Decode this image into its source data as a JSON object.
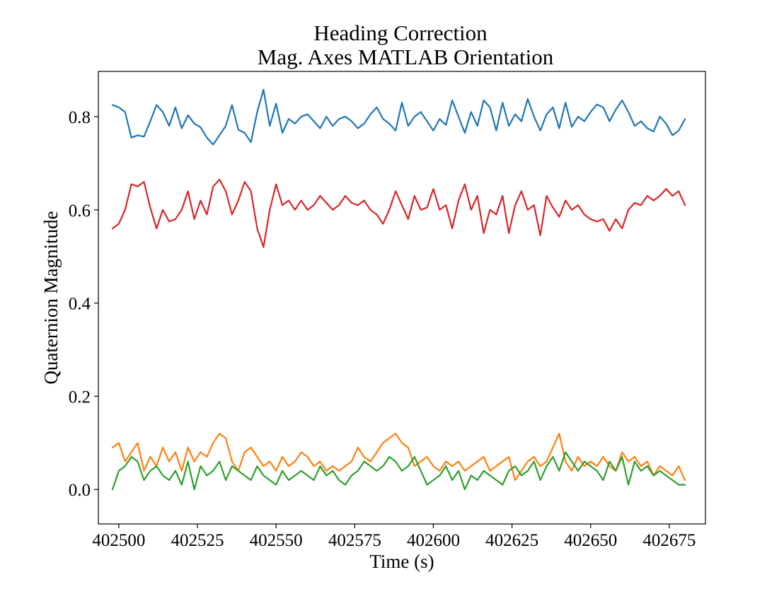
{
  "chart_data": {
    "type": "line",
    "title": [
      "Heading Correction",
      "Mag. Axes MATLAB Orientation"
    ],
    "xlabel": "Time (s)",
    "ylabel": "Quaternion Magnitude",
    "xlim": [
      402493.5,
      402686.5
    ],
    "ylim": [
      -0.074,
      0.897
    ],
    "xticks": [
      402500,
      402525,
      402550,
      402575,
      402600,
      402625,
      402650,
      402675
    ],
    "yticks": [
      0.0,
      0.2,
      0.4,
      0.6,
      0.8
    ],
    "ytick_labels": [
      "0.0",
      "0.2",
      "0.4",
      "0.6",
      "0.8"
    ],
    "grid": false,
    "series": [
      {
        "color": "#1f77b4",
        "x": [
          402498,
          402500,
          402502,
          402504,
          402506,
          402508,
          402510,
          402512,
          402514,
          402516,
          402518,
          402520,
          402522,
          402524,
          402526,
          402528,
          402530,
          402532,
          402534,
          402536,
          402538,
          402540,
          402542,
          402544,
          402546,
          402548,
          402550,
          402552,
          402554,
          402556,
          402558,
          402560,
          402562,
          402564,
          402566,
          402568,
          402570,
          402572,
          402574,
          402576,
          402578,
          402580,
          402582,
          402584,
          402586,
          402588,
          402590,
          402592,
          402594,
          402596,
          402598,
          402600,
          402602,
          402604,
          402606,
          402608,
          402610,
          402612,
          402614,
          402616,
          402618,
          402620,
          402622,
          402624,
          402626,
          402628,
          402630,
          402632,
          402634,
          402636,
          402638,
          402640,
          402642,
          402644,
          402646,
          402648,
          402650,
          402652,
          402654,
          402656,
          402658,
          402660,
          402662,
          402664,
          402666,
          402668,
          402670,
          402672,
          402674,
          402676,
          402678,
          402680
        ],
        "values": [
          0.825,
          0.82,
          0.81,
          0.755,
          0.76,
          0.757,
          0.79,
          0.825,
          0.81,
          0.78,
          0.82,
          0.775,
          0.803,
          0.785,
          0.777,
          0.755,
          0.74,
          0.76,
          0.78,
          0.825,
          0.772,
          0.765,
          0.745,
          0.81,
          0.858,
          0.78,
          0.828,
          0.765,
          0.795,
          0.785,
          0.8,
          0.805,
          0.79,
          0.775,
          0.8,
          0.78,
          0.795,
          0.8,
          0.79,
          0.775,
          0.785,
          0.805,
          0.82,
          0.795,
          0.785,
          0.77,
          0.83,
          0.78,
          0.8,
          0.81,
          0.79,
          0.77,
          0.795,
          0.782,
          0.835,
          0.8,
          0.765,
          0.81,
          0.78,
          0.835,
          0.82,
          0.77,
          0.83,
          0.78,
          0.805,
          0.79,
          0.838,
          0.8,
          0.77,
          0.805,
          0.82,
          0.775,
          0.83,
          0.778,
          0.8,
          0.79,
          0.81,
          0.826,
          0.82,
          0.79,
          0.815,
          0.835,
          0.81,
          0.78,
          0.79,
          0.775,
          0.768,
          0.8,
          0.785,
          0.76,
          0.77,
          0.795
        ]
      },
      {
        "color": "#d62728",
        "x": [
          402498,
          402500,
          402502,
          402504,
          402506,
          402508,
          402510,
          402512,
          402514,
          402516,
          402518,
          402520,
          402522,
          402524,
          402526,
          402528,
          402530,
          402532,
          402534,
          402536,
          402538,
          402540,
          402542,
          402544,
          402546,
          402548,
          402550,
          402552,
          402554,
          402556,
          402558,
          402560,
          402562,
          402564,
          402566,
          402568,
          402570,
          402572,
          402574,
          402576,
          402578,
          402580,
          402582,
          402584,
          402586,
          402588,
          402590,
          402592,
          402594,
          402596,
          402598,
          402600,
          402602,
          402604,
          402606,
          402608,
          402610,
          402612,
          402614,
          402616,
          402618,
          402620,
          402622,
          402624,
          402626,
          402628,
          402630,
          402632,
          402634,
          402636,
          402638,
          402640,
          402642,
          402644,
          402646,
          402648,
          402650,
          402652,
          402654,
          402656,
          402658,
          402660,
          402662,
          402664,
          402666,
          402668,
          402670,
          402672,
          402674,
          402676,
          402678,
          402680
        ],
        "values": [
          0.56,
          0.57,
          0.6,
          0.655,
          0.65,
          0.66,
          0.605,
          0.56,
          0.6,
          0.575,
          0.58,
          0.6,
          0.64,
          0.58,
          0.62,
          0.59,
          0.65,
          0.665,
          0.64,
          0.59,
          0.62,
          0.66,
          0.64,
          0.56,
          0.52,
          0.6,
          0.655,
          0.61,
          0.62,
          0.6,
          0.62,
          0.6,
          0.61,
          0.63,
          0.615,
          0.6,
          0.61,
          0.63,
          0.615,
          0.61,
          0.62,
          0.6,
          0.59,
          0.57,
          0.6,
          0.64,
          0.61,
          0.58,
          0.63,
          0.6,
          0.605,
          0.645,
          0.6,
          0.61,
          0.56,
          0.62,
          0.655,
          0.6,
          0.63,
          0.55,
          0.6,
          0.59,
          0.63,
          0.55,
          0.61,
          0.64,
          0.6,
          0.61,
          0.545,
          0.63,
          0.605,
          0.585,
          0.62,
          0.6,
          0.61,
          0.59,
          0.58,
          0.575,
          0.58,
          0.555,
          0.58,
          0.56,
          0.6,
          0.615,
          0.61,
          0.63,
          0.62,
          0.63,
          0.645,
          0.63,
          0.64,
          0.61
        ]
      },
      {
        "color": "#ff7f0e",
        "x": [
          402498,
          402500,
          402502,
          402504,
          402506,
          402508,
          402510,
          402512,
          402514,
          402516,
          402518,
          402520,
          402522,
          402524,
          402526,
          402528,
          402530,
          402532,
          402534,
          402536,
          402538,
          402540,
          402542,
          402544,
          402546,
          402548,
          402550,
          402552,
          402554,
          402556,
          402558,
          402560,
          402562,
          402564,
          402566,
          402568,
          402570,
          402572,
          402574,
          402576,
          402578,
          402580,
          402582,
          402584,
          402586,
          402588,
          402590,
          402592,
          402594,
          402596,
          402598,
          402600,
          402602,
          402604,
          402606,
          402608,
          402610,
          402612,
          402614,
          402616,
          402618,
          402620,
          402622,
          402624,
          402626,
          402628,
          402630,
          402632,
          402634,
          402636,
          402638,
          402640,
          402642,
          402644,
          402646,
          402648,
          402650,
          402652,
          402654,
          402656,
          402658,
          402660,
          402662,
          402664,
          402666,
          402668,
          402670,
          402672,
          402674,
          402676,
          402678,
          402680
        ],
        "values": [
          0.09,
          0.1,
          0.06,
          0.08,
          0.1,
          0.04,
          0.07,
          0.05,
          0.09,
          0.06,
          0.08,
          0.04,
          0.09,
          0.06,
          0.08,
          0.07,
          0.1,
          0.12,
          0.11,
          0.06,
          0.04,
          0.08,
          0.09,
          0.07,
          0.05,
          0.06,
          0.04,
          0.07,
          0.05,
          0.06,
          0.08,
          0.07,
          0.05,
          0.06,
          0.04,
          0.05,
          0.04,
          0.05,
          0.06,
          0.09,
          0.07,
          0.06,
          0.08,
          0.1,
          0.11,
          0.12,
          0.1,
          0.09,
          0.05,
          0.06,
          0.07,
          0.05,
          0.04,
          0.06,
          0.05,
          0.06,
          0.04,
          0.05,
          0.06,
          0.07,
          0.04,
          0.05,
          0.06,
          0.07,
          0.02,
          0.04,
          0.06,
          0.07,
          0.05,
          0.06,
          0.09,
          0.12,
          0.06,
          0.04,
          0.07,
          0.05,
          0.06,
          0.05,
          0.07,
          0.05,
          0.04,
          0.08,
          0.06,
          0.07,
          0.05,
          0.06,
          0.03,
          0.05,
          0.04,
          0.03,
          0.05,
          0.02
        ]
      },
      {
        "color": "#2ca02c",
        "x": [
          402498,
          402500,
          402502,
          402504,
          402506,
          402508,
          402510,
          402512,
          402514,
          402516,
          402518,
          402520,
          402522,
          402524,
          402526,
          402528,
          402530,
          402532,
          402534,
          402536,
          402538,
          402540,
          402542,
          402544,
          402546,
          402548,
          402550,
          402552,
          402554,
          402556,
          402558,
          402560,
          402562,
          402564,
          402566,
          402568,
          402570,
          402572,
          402574,
          402576,
          402578,
          402580,
          402582,
          402584,
          402586,
          402588,
          402590,
          402592,
          402594,
          402596,
          402598,
          402600,
          402602,
          402604,
          402606,
          402608,
          402610,
          402612,
          402614,
          402616,
          402618,
          402620,
          402622,
          402624,
          402626,
          402628,
          402630,
          402632,
          402634,
          402636,
          402638,
          402640,
          402642,
          402644,
          402646,
          402648,
          402650,
          402652,
          402654,
          402656,
          402658,
          402660,
          402662,
          402664,
          402666,
          402668,
          402670,
          402672,
          402674,
          402676,
          402678,
          402680
        ],
        "values": [
          0.0,
          0.04,
          0.05,
          0.07,
          0.06,
          0.02,
          0.04,
          0.05,
          0.03,
          0.02,
          0.04,
          0.01,
          0.06,
          0.0,
          0.05,
          0.03,
          0.04,
          0.06,
          0.02,
          0.05,
          0.04,
          0.03,
          0.02,
          0.05,
          0.03,
          0.02,
          0.01,
          0.04,
          0.02,
          0.03,
          0.04,
          0.03,
          0.02,
          0.05,
          0.03,
          0.04,
          0.02,
          0.01,
          0.03,
          0.04,
          0.06,
          0.05,
          0.04,
          0.05,
          0.07,
          0.06,
          0.04,
          0.05,
          0.07,
          0.04,
          0.01,
          0.02,
          0.03,
          0.05,
          0.02,
          0.04,
          0.0,
          0.03,
          0.02,
          0.04,
          0.03,
          0.02,
          0.01,
          0.04,
          0.05,
          0.03,
          0.04,
          0.06,
          0.02,
          0.05,
          0.07,
          0.04,
          0.08,
          0.06,
          0.04,
          0.06,
          0.05,
          0.04,
          0.02,
          0.06,
          0.04,
          0.07,
          0.01,
          0.06,
          0.04,
          0.05,
          0.03,
          0.04,
          0.03,
          0.02,
          0.01,
          0.01
        ]
      }
    ]
  }
}
